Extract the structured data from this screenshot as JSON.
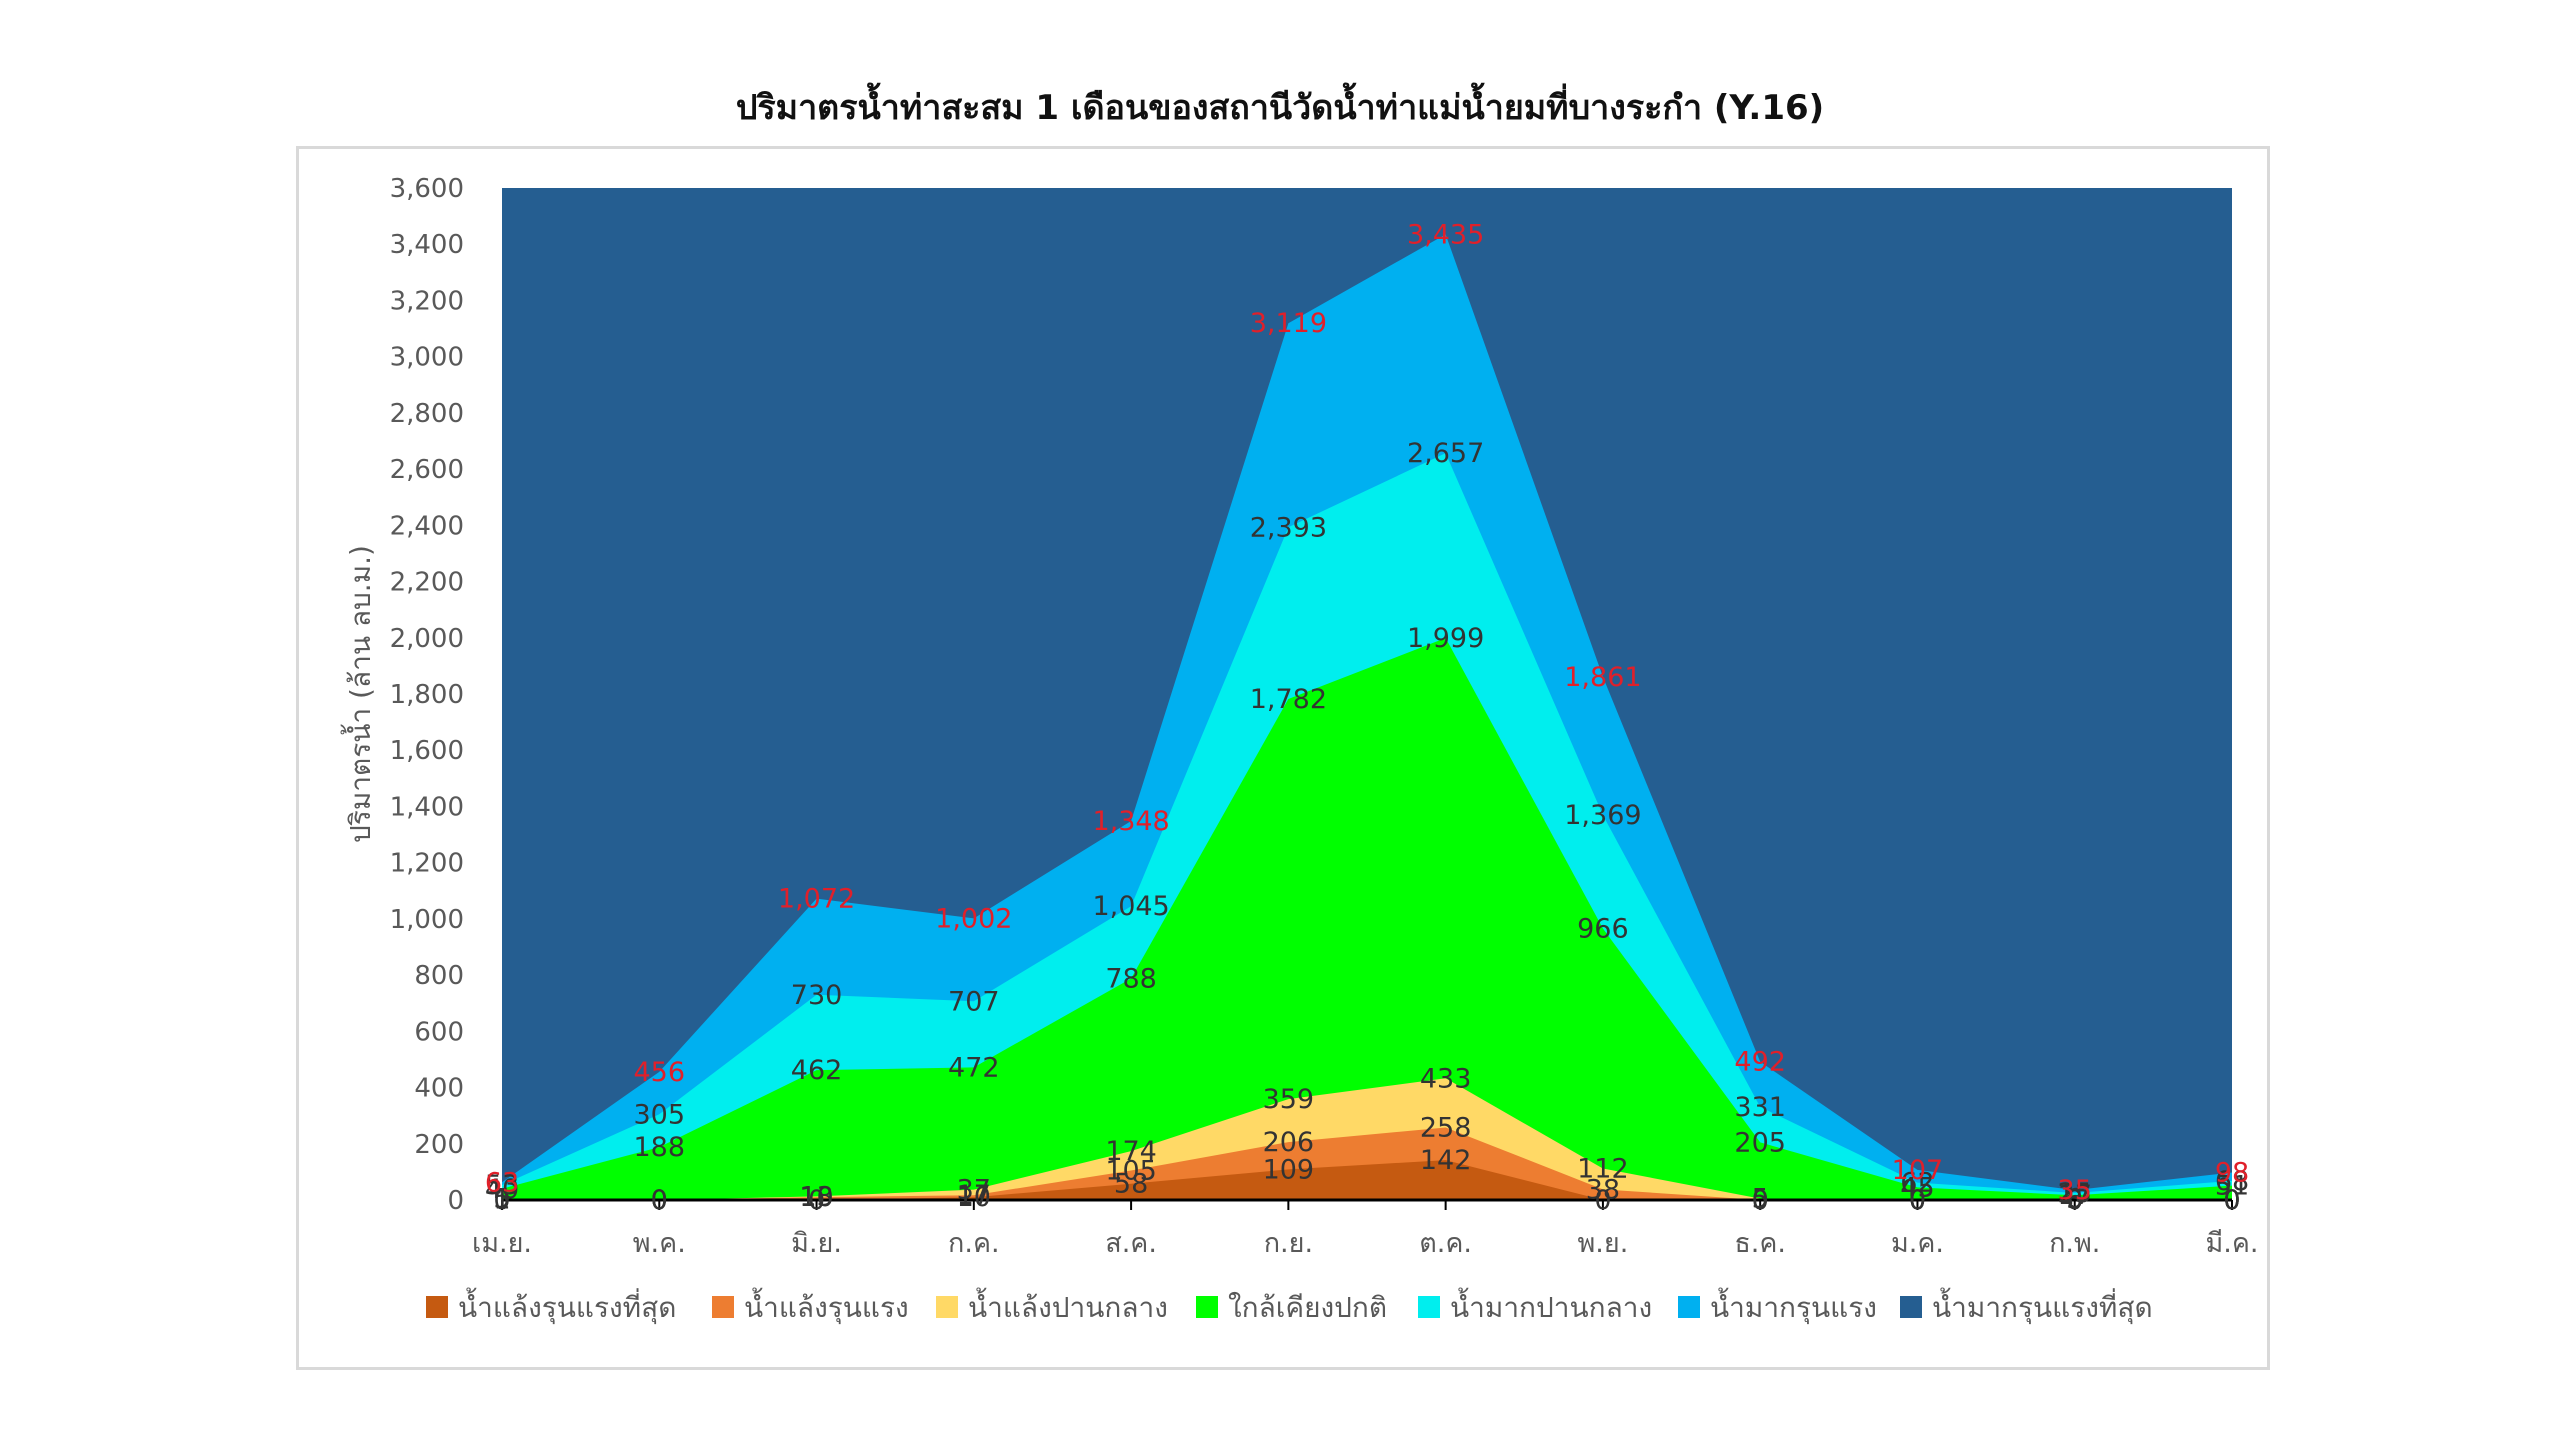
{
  "chart_data": {
    "type": "area",
    "title": "ปริมาตรน้ำท่าสะสม 1 เดือนของสถานีวัดน้ำท่าแม่น้ำยมที่บางระกำ (Y.16)",
    "xlabel": "",
    "ylabel": "ปริมาตรน้ำ (ล้าน ลบ.ม.)",
    "ylim": [
      0,
      3600
    ],
    "ytick_step": 200,
    "grid": false,
    "legend_position": "bottom",
    "categories": [
      "เม.ย.",
      "พ.ค.",
      "มิ.ย.",
      "ก.ค.",
      "ส.ค.",
      "ก.ย.",
      "ต.ค.",
      "พ.ย.",
      "ธ.ค.",
      "ม.ค.",
      "ก.พ.",
      "มี.ค."
    ],
    "stacking": "values are cumulative upper boundaries of each band",
    "series": [
      {
        "name": "น้ำแล้งรุนแรงที่สุด",
        "color": "#C55A11",
        "values": [
          0,
          0,
          0,
          10,
          58,
          109,
          142,
          0,
          0,
          0,
          0,
          0
        ],
        "labels": [
          "0",
          "0",
          "0",
          "10",
          "58",
          "109",
          "142",
          "0",
          "0",
          "0",
          "0",
          "0"
        ]
      },
      {
        "name": "น้ำแล้งรุนแรง",
        "color": "#ED7D31",
        "values": [
          1,
          0,
          10,
          17,
          105,
          206,
          258,
          38,
          0,
          0,
          3,
          0
        ],
        "labels": [
          "1",
          "0",
          "10",
          "17",
          "105",
          "206",
          "258",
          "38",
          "0",
          "0",
          "3",
          "0"
        ]
      },
      {
        "name": "น้ำแล้งปานกลาง",
        "color": "#FFD966",
        "values": [
          5,
          0,
          13,
          37,
          174,
          359,
          433,
          112,
          5,
          0,
          6,
          0
        ],
        "labels": [
          "5",
          "0",
          "13",
          "37",
          "174",
          "359",
          "433",
          "112",
          "5",
          "0",
          "6",
          "0"
        ]
      },
      {
        "name": "ใกล้เคียงปกติ",
        "color": "#00FF00",
        "values": [
          40,
          188,
          462,
          472,
          788,
          1782,
          1999,
          966,
          205,
          45,
          17,
          51
        ],
        "labels": [
          "40",
          "188",
          "462",
          "472",
          "788",
          "1,782",
          "1,999",
          "966",
          "205",
          "45",
          "17",
          "51"
        ]
      },
      {
        "name": "น้ำมากปานกลาง",
        "color": "#00EEEE",
        "values": [
          53,
          305,
          730,
          707,
          1045,
          2393,
          2657,
          1369,
          331,
          62,
          25,
          68
        ],
        "labels": [
          "53",
          "305",
          "730",
          "707",
          "1,045",
          "2,393",
          "2,657",
          "1,369",
          "331",
          "62",
          "25",
          "68"
        ]
      },
      {
        "name": "น้ำมากรุนแรง",
        "color": "#00B0F0",
        "values": [
          63,
          456,
          1072,
          1002,
          1348,
          3119,
          3435,
          1861,
          492,
          107,
          35,
          98
        ],
        "labels": [
          "63",
          "456",
          "1,072",
          "1,002",
          "1,348",
          "3,119",
          "3,435",
          "1,861",
          "492",
          "107",
          "35",
          "98"
        ]
      },
      {
        "name": "น้ำมากรุนแรงที่สุด",
        "color": "#255E91",
        "values": [
          3600,
          3600,
          3600,
          3600,
          3600,
          3600,
          3600,
          3600,
          3600,
          3600,
          3600,
          3600
        ]
      }
    ]
  }
}
